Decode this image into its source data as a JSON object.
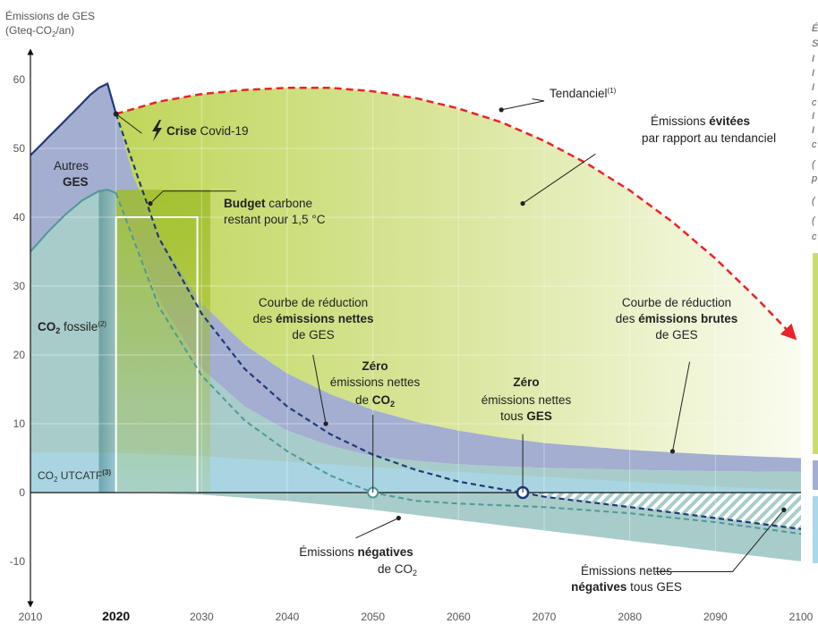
{
  "chart_data": {
    "type": "area",
    "ylabel_line1": "Émissions de GES",
    "ylabel_line2_a": "(Gteq-CO",
    "ylabel_line2_sub": "2",
    "ylabel_line2_b": "/an)",
    "xlim": [
      2010,
      2100
    ],
    "ylim": [
      -15,
      63
    ],
    "x_ticks": [
      "2010",
      "2020",
      "2030",
      "2040",
      "2050",
      "2060",
      "2070",
      "2080",
      "2090",
      "2100"
    ],
    "y_ticks": [
      "60",
      "50",
      "40",
      "30",
      "20",
      "10",
      "0",
      "-10"
    ],
    "highlight_tick": "2020",
    "series": [
      {
        "key": "tendanciel",
        "style": "dashed-arrow",
        "x": [
          2020,
          2025,
          2030,
          2035,
          2040,
          2045,
          2050,
          2055,
          2060,
          2065,
          2070,
          2075,
          2080,
          2085,
          2090,
          2095,
          2100
        ],
        "y": [
          55,
          56.8,
          57.9,
          58.5,
          58.8,
          58.8,
          58.3,
          57.3,
          55.8,
          53.8,
          51.1,
          47.8,
          43.9,
          39.3,
          34,
          28,
          21.5
        ]
      },
      {
        "key": "ges_total_hist",
        "x": [
          2010,
          2012,
          2014,
          2016,
          2017,
          2018,
          2019,
          2020
        ],
        "y": [
          49,
          51.5,
          54,
          56.5,
          57.8,
          58.8,
          59.4,
          55
        ]
      },
      {
        "key": "co2_fossile_hist",
        "x": [
          2010,
          2012,
          2014,
          2016,
          2018,
          2019,
          2020
        ],
        "y": [
          35,
          37.8,
          40.3,
          42.4,
          43.8,
          44,
          43.5
        ]
      },
      {
        "key": "utcatf_band",
        "x": [
          2010,
          2020,
          2030,
          2040,
          2050,
          2060,
          2070,
          2080,
          2090,
          2100
        ],
        "y": [
          5.8,
          5.8,
          5.3,
          4.5,
          3.7,
          3,
          2.3,
          1.6,
          0.9,
          0.3
        ]
      },
      {
        "key": "emissions_brutes",
        "x": [
          2020,
          2022,
          2025,
          2030,
          2035,
          2040,
          2045,
          2050,
          2055,
          2060,
          2065,
          2070,
          2080,
          2090,
          2100
        ],
        "y": [
          55,
          46,
          37,
          27.5,
          21.5,
          17.3,
          14.3,
          12,
          10.3,
          9,
          8,
          7.2,
          6.2,
          5.5,
          5
        ]
      },
      {
        "key": "co2_brut",
        "x": [
          2020,
          2025,
          2030,
          2035,
          2040,
          2045,
          2050,
          2055,
          2060,
          2065,
          2070,
          2080,
          2090,
          2100
        ],
        "y": [
          43.5,
          28,
          18,
          12.5,
          9,
          6.8,
          5.3,
          4.6,
          4.1,
          3.8,
          3.6,
          3.3,
          3.1,
          3
        ]
      },
      {
        "key": "negatives_band",
        "x": [
          2010,
          2020,
          2030,
          2040,
          2050,
          2060,
          2070,
          2080,
          2090,
          2100
        ],
        "y": [
          0,
          0,
          -0.3,
          -1.2,
          -2.5,
          -4,
          -5.5,
          -7,
          -8.5,
          -10
        ]
      },
      {
        "key": "emissions_nettes",
        "x": [
          2020,
          2025,
          2030,
          2035,
          2040,
          2045,
          2050,
          2055,
          2060,
          2065,
          2067.5,
          2070,
          2080,
          2090,
          2100
        ],
        "y": [
          55,
          37,
          26,
          18,
          12.5,
          8.5,
          5.5,
          3.3,
          1.6,
          0.5,
          0,
          -0.6,
          -2.1,
          -3.7,
          -5.3
        ]
      },
      {
        "key": "co2_net",
        "x": [
          2020,
          2025,
          2030,
          2035,
          2040,
          2045,
          2050,
          2055,
          2060,
          2070,
          2080,
          2090,
          2100
        ],
        "y": [
          43.5,
          27,
          17,
          10.5,
          6,
          2.5,
          0,
          -1.2,
          -1.6,
          -2.1,
          -3,
          -4.3,
          -6
        ]
      }
    ],
    "budget": {
      "label_bold": "Budget",
      "label_rest": "carbone",
      "label_line2": "restant pour 1,5 °C"
    },
    "points": {
      "zero_co2": {
        "x": 2050,
        "y": 0
      },
      "zero_ges": {
        "x": 2067.5,
        "y": 0
      },
      "crise": {
        "x": 2020,
        "y": 55
      }
    },
    "annotations": {
      "tendanciel": {
        "text": "Tendanciel",
        "sup": "(1)"
      },
      "evitees": {
        "l1_a": "Émissions ",
        "l1_b": "évitées",
        "l2": "par rapport au tendanciel"
      },
      "crise": {
        "bold": "Crise",
        "rest": " Covid-19"
      },
      "autres": {
        "l1": "Autres",
        "l2": "GES"
      },
      "co2_fossile": {
        "a": "CO",
        "sub": "2",
        "b": " fossile",
        "sup": "(2)"
      },
      "utcatf": {
        "a": "CO",
        "sub": "2",
        "b": " UTCATF",
        "sup": "(3)"
      },
      "nettes": {
        "l1": "Courbe de réduction",
        "l2_a": "des ",
        "l2_b": "émissions nettes",
        "l3": "de GES"
      },
      "brutes": {
        "l1": "Courbe de réduction",
        "l2_a": "des ",
        "l2_b": "émissions brutes",
        "l3": "de GES"
      },
      "zero_co2": {
        "l1": "Zéro",
        "l2": "émissions nettes",
        "l3_a": "de ",
        "l3_b": "CO",
        "l3_sub": "2"
      },
      "zero_ges": {
        "l1": "Zéro",
        "l2": "émissions nettes",
        "l3_a": "tous ",
        "l3_b": "GES"
      },
      "negatives": {
        "l1_a": "Émissions ",
        "l1_b": "négatives",
        "l2_a": "de CO",
        "l2_sub": "2"
      },
      "nettes_neg": {
        "l1": "Émissions nettes",
        "l2_b": "négatives",
        "l2_a": " tous GES"
      }
    },
    "colors": {
      "tendanciel": "#e8232a",
      "evitees_area": "#c9dd6e",
      "autres_ges": "#a3aed0",
      "co2_fossile": "#a8ccc9",
      "utcatf": "#a9d8ea",
      "negatives": "#a8ccc9",
      "nettes_line": "#1f3a7a",
      "co2_line": "#4e9999",
      "budget_fill": "#a9c43b",
      "budget_border": "#ffffff"
    },
    "right_edge_chars": [
      "É",
      "S",
      "I",
      "I",
      "I",
      "c",
      "I",
      "I",
      "c",
      "(",
      "p",
      "(",
      "(",
      "c"
    ]
  }
}
